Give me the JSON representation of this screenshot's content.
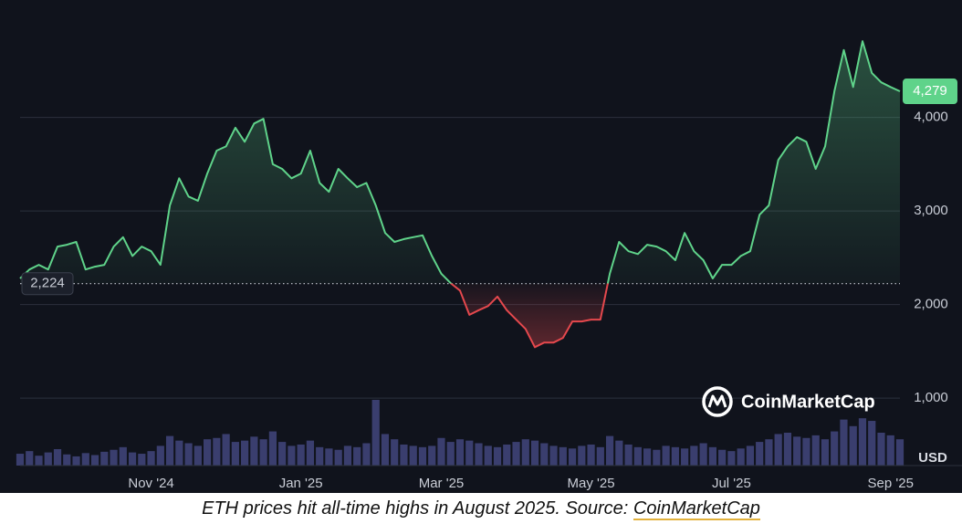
{
  "chart_data": {
    "type": "line",
    "categories": [
      null,
      null,
      null,
      null,
      null,
      null,
      null,
      null,
      null,
      null,
      null,
      null,
      null,
      null,
      "Nov '24",
      null,
      null,
      null,
      null,
      null,
      null,
      null,
      null,
      null,
      null,
      null,
      null,
      null,
      null,
      null,
      "Jan '25",
      null,
      null,
      null,
      null,
      null,
      null,
      null,
      null,
      null,
      null,
      null,
      null,
      null,
      null,
      "Mar '25",
      null,
      null,
      null,
      null,
      null,
      null,
      null,
      null,
      null,
      null,
      null,
      null,
      null,
      null,
      null,
      "May '25",
      null,
      null,
      null,
      null,
      null,
      null,
      null,
      null,
      null,
      null,
      null,
      null,
      null,
      null,
      "Jul '25",
      null,
      null,
      null,
      null,
      null,
      null,
      null,
      null,
      null,
      null,
      null,
      null,
      null,
      null,
      null,
      null,
      "Sep '25",
      null
    ],
    "series": [
      {
        "color": "#5fd38a",
        "down_color": "#e5484d",
        "values": [
          2280,
          2375,
          2425,
          2375,
          2620,
          2640,
          2670,
          2375,
          2405,
          2425,
          2620,
          2720,
          2520,
          2620,
          2570,
          2425,
          3060,
          3350,
          3155,
          3110,
          3400,
          3645,
          3690,
          3890,
          3740,
          3935,
          3985,
          3500,
          3450,
          3350,
          3400,
          3645,
          3300,
          3205,
          3450,
          3350,
          3255,
          3300,
          3060,
          2765,
          2670,
          2700,
          2720,
          2740,
          2520,
          2330,
          2230,
          2150,
          1890,
          1940,
          1985,
          2085,
          1940,
          1840,
          1740,
          1545,
          1595,
          1595,
          1645,
          1820,
          1820,
          1840,
          1840,
          2330,
          2670,
          2570,
          2540,
          2640,
          2620,
          2570,
          2475,
          2765,
          2570,
          2475,
          2280,
          2425,
          2425,
          2520,
          2570,
          2960,
          3060,
          3545,
          3690,
          3790,
          3740,
          3450,
          3690,
          4280,
          4720,
          4325,
          4815,
          4475,
          4375,
          4325,
          4279
        ]
      }
    ],
    "volume": {
      "color": "#3a3e6e",
      "vlim": [
        0,
        100
      ],
      "values": [
        18,
        22,
        15,
        20,
        25,
        17,
        14,
        19,
        16,
        21,
        24,
        28,
        20,
        18,
        22,
        30,
        45,
        38,
        34,
        30,
        40,
        42,
        48,
        36,
        38,
        44,
        40,
        52,
        36,
        30,
        32,
        38,
        28,
        26,
        24,
        30,
        28,
        34,
        100,
        48,
        40,
        32,
        30,
        28,
        30,
        42,
        36,
        40,
        38,
        34,
        30,
        28,
        32,
        36,
        40,
        38,
        34,
        30,
        28,
        26,
        30,
        32,
        28,
        45,
        38,
        32,
        28,
        26,
        24,
        30,
        28,
        26,
        30,
        34,
        28,
        24,
        22,
        26,
        30,
        36,
        40,
        48,
        50,
        44,
        42,
        46,
        40,
        52,
        70,
        60,
        72,
        68,
        50,
        46,
        40
      ]
    },
    "ylim": [
      280,
      5040
    ],
    "yticks": [
      {
        "value": 1000,
        "label": "1,000"
      },
      {
        "value": 2000,
        "label": "2,000"
      },
      {
        "value": 3000,
        "label": "3,000"
      },
      {
        "value": 4000,
        "label": "4,000"
      }
    ],
    "grid": true,
    "baseline": {
      "value": 2224,
      "label": "2,224"
    },
    "last_price": {
      "value": 4279,
      "label": "4,279"
    },
    "currency": "USD",
    "watermark": "CoinMarketCap"
  },
  "caption": {
    "text": "ETH prices hit all-time highs in August 2025. Source:",
    "link": "CoinMarketCap"
  }
}
